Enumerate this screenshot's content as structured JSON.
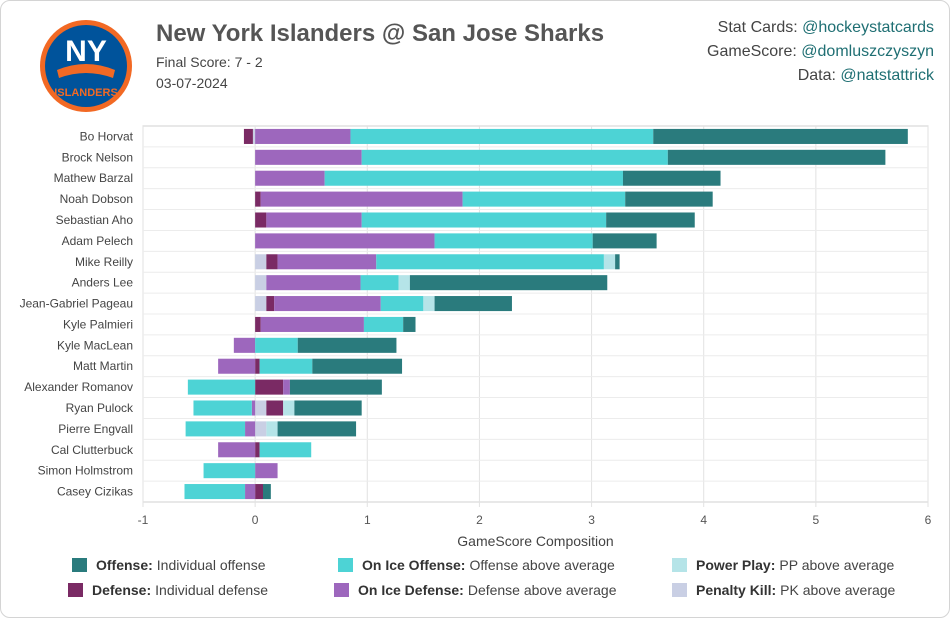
{
  "header": {
    "title": "New York Islanders @ San Jose Sharks",
    "final_score": "Final Score: 7 - 2",
    "date": "03-07-2024",
    "logo_text": "NY ISLANDERS"
  },
  "credits": [
    {
      "label": "Stat Cards:",
      "handle": "@hockeystatcards"
    },
    {
      "label": "GameScore:",
      "handle": "@domluszczyszyn"
    },
    {
      "label": "Data:",
      "handle": "@natstattrick"
    }
  ],
  "legend": [
    {
      "key": "offense",
      "bold": "Offense:",
      "desc": "Individual offense",
      "color": "#2a7b7d"
    },
    {
      "key": "onice_off",
      "bold": "On Ice Offense:",
      "desc": "Offense above average",
      "color": "#4dd3d5"
    },
    {
      "key": "pp",
      "bold": "Power Play:",
      "desc": "PP above average",
      "color": "#b5e4e8"
    },
    {
      "key": "defense",
      "bold": "Defense:",
      "desc": "Individual defense",
      "color": "#7a2a64"
    },
    {
      "key": "onice_def",
      "bold": "On Ice Defense:",
      "desc": "Defense above average",
      "color": "#9d67bd"
    },
    {
      "key": "pk",
      "bold": "Penalty Kill:",
      "desc": "PK above average",
      "color": "#c9cfe4"
    }
  ],
  "chart_data": {
    "type": "bar",
    "orientation": "horizontal",
    "stacked": true,
    "xlabel": "GameScore Composition",
    "xlim": [
      -1,
      6
    ],
    "xticks": [
      -1,
      0,
      1,
      2,
      3,
      4,
      5,
      6
    ],
    "grid": true,
    "categories": [
      "Bo Horvat",
      "Brock Nelson",
      "Mathew Barzal",
      "Noah Dobson",
      "Sebastian Aho",
      "Adam Pelech",
      "Mike Reilly",
      "Anders Lee",
      "Jean-Gabriel Pageau",
      "Kyle Palmieri",
      "Kyle MacLean",
      "Matt Martin",
      "Alexander Romanov",
      "Ryan Pulock",
      "Pierre Engvall",
      "Cal Clutterbuck",
      "Simon Holmstrom",
      "Casey Cizikas"
    ],
    "series_order": [
      "pk",
      "defense",
      "onice_def",
      "onice_off",
      "pp",
      "offense"
    ],
    "series": [
      {
        "key": "pk",
        "values": [
          -0.02,
          0,
          0,
          0,
          0,
          0,
          0.1,
          0.1,
          0.1,
          0,
          0,
          0,
          0,
          0.1,
          0.1,
          0,
          0,
          0
        ]
      },
      {
        "key": "defense",
        "values": [
          -0.08,
          0,
          0,
          0.05,
          0.1,
          0,
          0.1,
          0,
          0.07,
          0.05,
          0,
          0.04,
          0.25,
          0.15,
          0,
          0.04,
          0,
          0.07
        ]
      },
      {
        "key": "onice_def",
        "values": [
          0.85,
          0.95,
          0.62,
          1.8,
          0.85,
          1.6,
          0.88,
          0.84,
          0.95,
          0.92,
          -0.19,
          -0.33,
          0.06,
          -0.03,
          -0.09,
          -0.33,
          0.2,
          -0.09
        ]
      },
      {
        "key": "onice_off",
        "values": [
          2.7,
          2.73,
          2.66,
          1.45,
          2.18,
          1.41,
          2.03,
          0.34,
          0.38,
          0.35,
          0.38,
          0.47,
          -0.6,
          -0.52,
          -0.53,
          0.46,
          -0.46,
          -0.54
        ]
      },
      {
        "key": "pp",
        "values": [
          0,
          0,
          0,
          0,
          0,
          0,
          0.1,
          0.1,
          0.1,
          0,
          0,
          0,
          0,
          0.1,
          0.1,
          0,
          0,
          0
        ]
      },
      {
        "key": "offense",
        "values": [
          2.27,
          1.94,
          0.87,
          0.78,
          0.79,
          0.57,
          0.04,
          1.76,
          0.69,
          0.11,
          0.88,
          0.8,
          0.82,
          0.6,
          0.7,
          0,
          0,
          0.07
        ]
      }
    ]
  }
}
